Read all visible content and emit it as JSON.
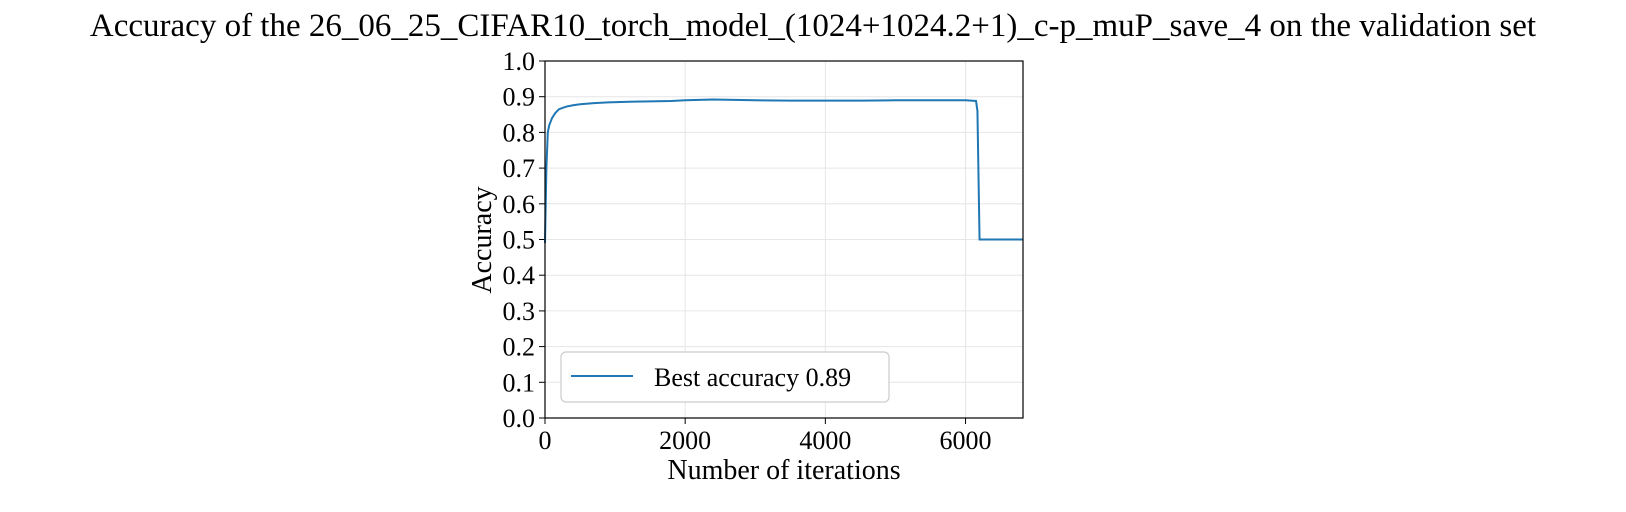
{
  "chart_data": {
    "type": "line",
    "title": "Accuracy of the 26_06_25_CIFAR10_torch_model_(1024+1024.2+1)_c-p_muP_save_4 on the validation set",
    "xlabel": "Number of iterations",
    "ylabel": "Accuracy",
    "xlim": [
      0,
      6820
    ],
    "ylim": [
      0.0,
      1.0
    ],
    "xticks": [
      0,
      2000,
      4000,
      6000
    ],
    "xtick_labels": [
      "0",
      "2000",
      "4000",
      "6000"
    ],
    "yticks": [
      0.0,
      0.1,
      0.2,
      0.3,
      0.4,
      0.5,
      0.6,
      0.7,
      0.8,
      0.9,
      1.0
    ],
    "ytick_labels": [
      "0.0",
      "0.1",
      "0.2",
      "0.3",
      "0.4",
      "0.5",
      "0.6",
      "0.7",
      "0.8",
      "0.9",
      "1.0"
    ],
    "grid": true,
    "legend_position": "lower-left",
    "series": [
      {
        "name": "Best accuracy 0.89",
        "color": "#1f77b4",
        "x": [
          0,
          20,
          40,
          60,
          80,
          100,
          150,
          200,
          300,
          400,
          500,
          700,
          900,
          1200,
          1500,
          1800,
          2000,
          2200,
          2400,
          2700,
          3000,
          3500,
          4000,
          4500,
          5000,
          5500,
          6000,
          6150,
          6170,
          6200,
          6500,
          6820
        ],
        "y": [
          0.49,
          0.7,
          0.8,
          0.82,
          0.83,
          0.84,
          0.855,
          0.865,
          0.872,
          0.876,
          0.879,
          0.882,
          0.884,
          0.886,
          0.887,
          0.888,
          0.89,
          0.891,
          0.892,
          0.891,
          0.89,
          0.889,
          0.889,
          0.889,
          0.89,
          0.89,
          0.89,
          0.888,
          0.86,
          0.5,
          0.5,
          0.5
        ]
      }
    ]
  }
}
